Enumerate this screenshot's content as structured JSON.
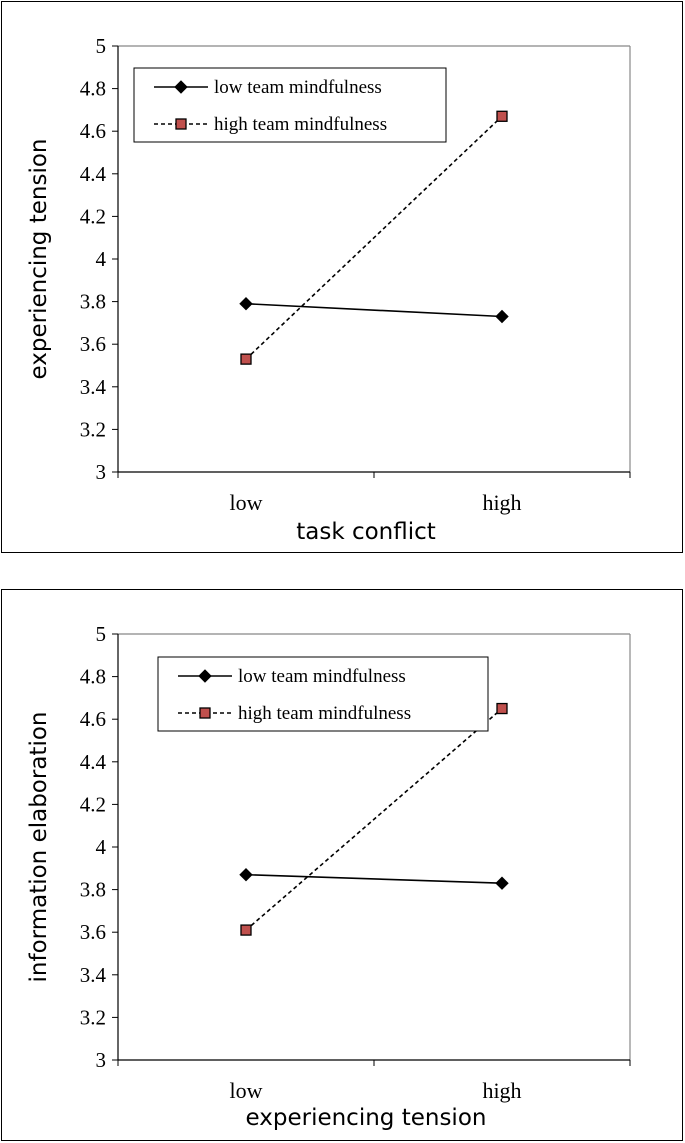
{
  "chart_data": [
    {
      "type": "line",
      "title": "",
      "xlabel": "task conflict",
      "ylabel": "experiencing tension",
      "categories": [
        "low",
        "high"
      ],
      "ylim": [
        3,
        5
      ],
      "yticks": [
        "3",
        "3.2",
        "3.4",
        "3.6",
        "3.8",
        "4",
        "4.2",
        "4.4",
        "4.6",
        "4.8",
        "5"
      ],
      "grid": false,
      "legend_position": "top-left",
      "series": [
        {
          "name": "low team mindfulness",
          "values": [
            3.79,
            3.73
          ],
          "color": "#000000",
          "marker": "diamond",
          "line_style": "solid"
        },
        {
          "name": "high team mindfulness",
          "values": [
            3.53,
            4.67
          ],
          "color": "#c0504d",
          "marker": "square",
          "line_style": "dashed"
        }
      ]
    },
    {
      "type": "line",
      "title": "",
      "xlabel": "experiencing tension",
      "ylabel": "information elaboration",
      "categories": [
        "low",
        "high"
      ],
      "ylim": [
        3,
        5
      ],
      "yticks": [
        "3",
        "3.2",
        "3.4",
        "3.6",
        "3.8",
        "4",
        "4.2",
        "4.4",
        "4.6",
        "4.8",
        "5"
      ],
      "grid": false,
      "legend_position": "top-center",
      "series": [
        {
          "name": "low team mindfulness",
          "values": [
            3.87,
            3.83
          ],
          "color": "#000000",
          "marker": "diamond",
          "line_style": "solid"
        },
        {
          "name": "high team mindfulness",
          "values": [
            3.61,
            4.65
          ],
          "color": "#c0504d",
          "marker": "square",
          "line_style": "dashed"
        }
      ]
    }
  ]
}
